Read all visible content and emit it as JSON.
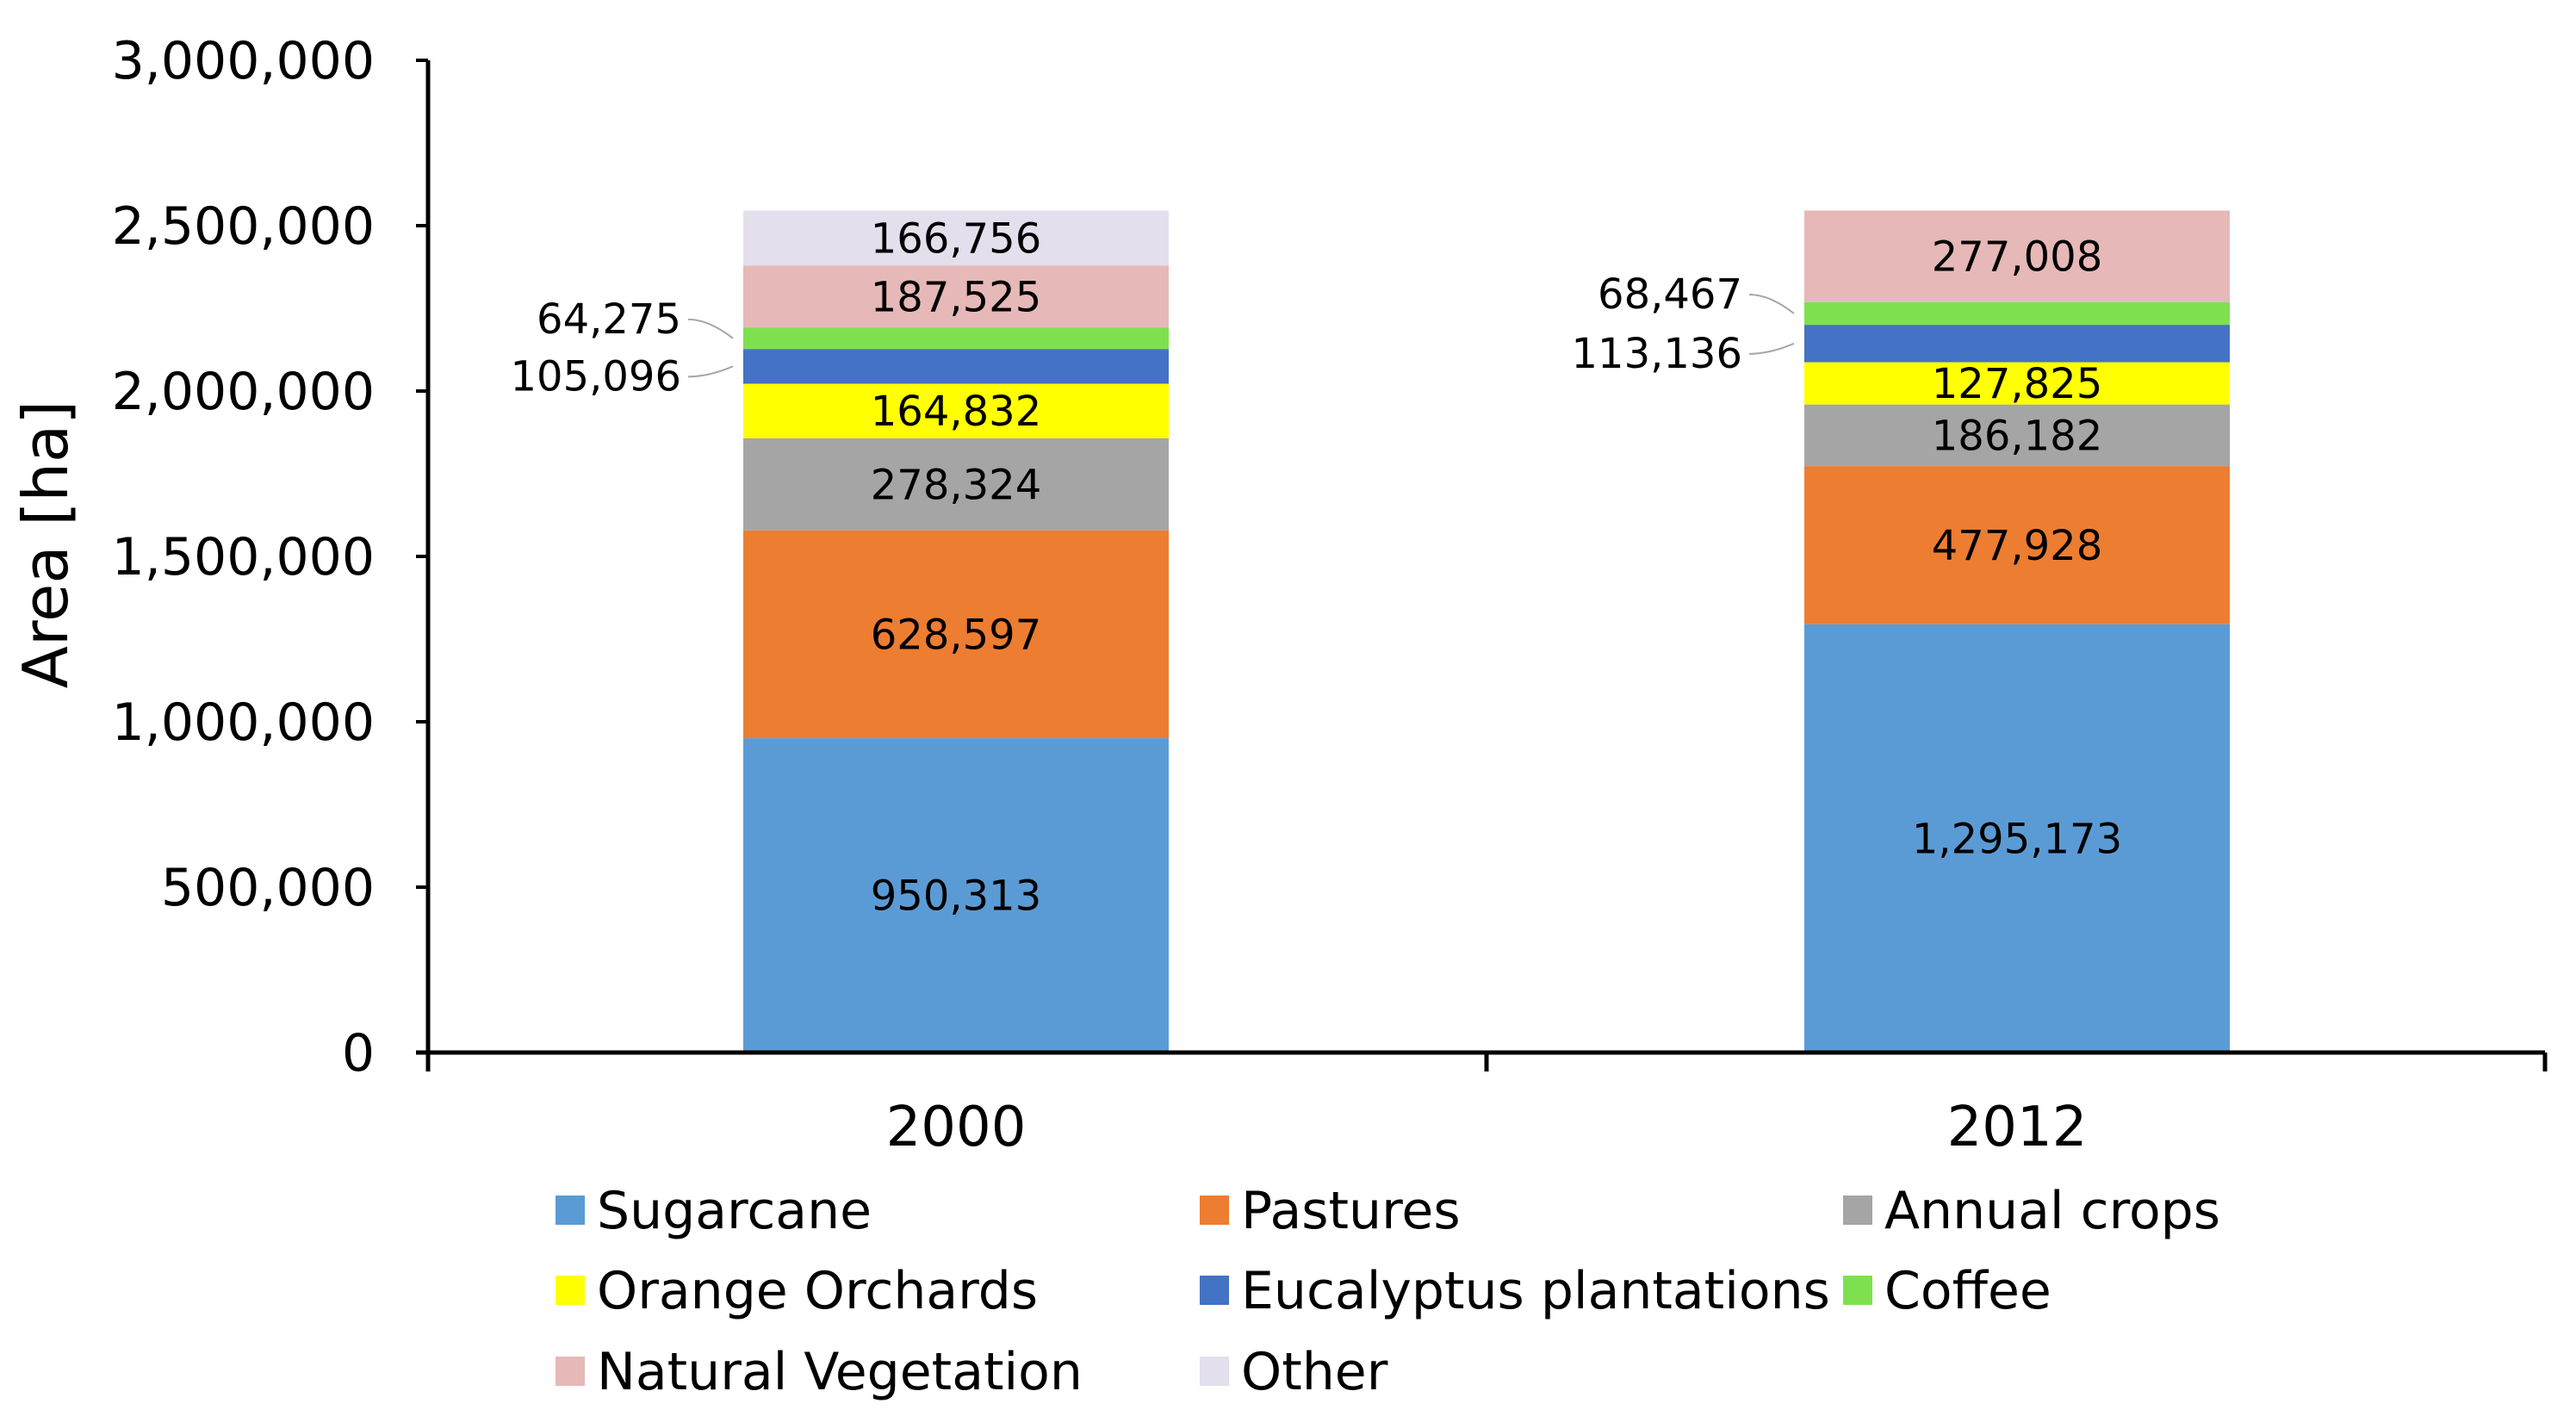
{
  "chart_data": {
    "type": "bar",
    "stacked": true,
    "title": "",
    "xlabel": "",
    "ylabel": "Area [ha]",
    "ylim": [
      0,
      3000000
    ],
    "yticks": [
      0,
      500000,
      1000000,
      1500000,
      2000000,
      2500000,
      3000000
    ],
    "ytick_labels": [
      "0",
      "500,000",
      "1,000,000",
      "1,500,000",
      "2,000,000",
      "2,500,000",
      "3,000,000"
    ],
    "categories": [
      "2000",
      "2012"
    ],
    "grid": false,
    "legend_position": "bottom",
    "series": [
      {
        "name": "Sugarcane",
        "color": "#5B9BD5",
        "values": [
          950313,
          1295173
        ],
        "labels": [
          "950,313",
          "1,295,173"
        ]
      },
      {
        "name": "Pastures",
        "color": "#ED7D31",
        "values": [
          628597,
          477928
        ],
        "labels": [
          "628,597",
          "477,928"
        ]
      },
      {
        "name": "Annual crops",
        "color": "#A5A5A5",
        "values": [
          278324,
          186182
        ],
        "labels": [
          "278,324",
          "186,182"
        ]
      },
      {
        "name": "Orange Orchards",
        "color": "#FFFF00",
        "values": [
          164832,
          127825
        ],
        "labels": [
          "164,832",
          "127,825"
        ]
      },
      {
        "name": "Eucalyptus plantations",
        "color": "#4472C4",
        "values": [
          105096,
          113136
        ],
        "labels": [
          "105,096",
          "113,136"
        ]
      },
      {
        "name": "Coffee",
        "color": "#7FE04F",
        "values": [
          64275,
          68467
        ],
        "labels": [
          "64,275",
          "68,467"
        ]
      },
      {
        "name": "Natural Vegetation",
        "color": "#E6B8B7",
        "values": [
          187525,
          277008
        ],
        "labels": [
          "187,525",
          "277,008"
        ]
      },
      {
        "name": "Other",
        "color": "#E4DFEC",
        "values": [
          166756,
          0
        ],
        "labels": [
          "166,756",
          ""
        ]
      }
    ]
  }
}
